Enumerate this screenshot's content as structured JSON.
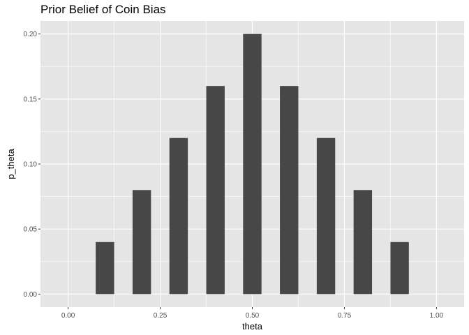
{
  "chart_data": {
    "type": "bar",
    "title": "Prior Belief of Coin Bias",
    "xlabel": "theta",
    "ylabel": "p_theta",
    "x": [
      0.1,
      0.2,
      0.3,
      0.4,
      0.5,
      0.6,
      0.7,
      0.8,
      0.9
    ],
    "values": [
      0.04,
      0.08,
      0.12,
      0.16,
      0.2,
      0.16,
      0.12,
      0.08,
      0.04
    ],
    "bar_width": 0.05,
    "xlim": [
      -0.075,
      1.075
    ],
    "ylim": [
      -0.01,
      0.21
    ],
    "x_ticks": [
      0,
      0.25,
      0.5,
      0.75,
      1
    ],
    "x_tick_labels": [
      "0.00",
      "0.25",
      "0.50",
      "0.75",
      "1.00"
    ],
    "y_ticks": [
      0,
      0.05,
      0.1,
      0.15,
      0.2
    ],
    "y_tick_labels": [
      "0.00",
      "0.05",
      "0.10",
      "0.15",
      "0.20"
    ],
    "grid": true,
    "bar_color": "#474747",
    "panel_color": "#e5e5e5",
    "grid_color": "#ffffff"
  }
}
